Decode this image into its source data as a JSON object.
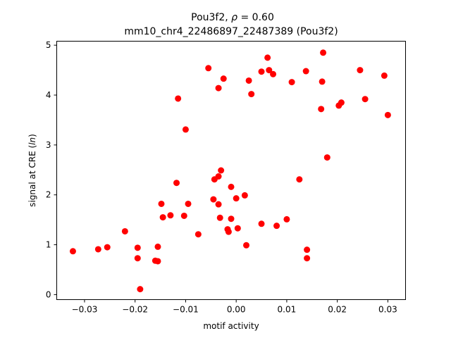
{
  "chart_data": {
    "type": "scatter",
    "title_line1_prefix": "Pou3f2, ",
    "title_line1_rho": "ρ",
    "title_line1_suffix": " = 0.60",
    "title_line2": "mm10_chr4_22486897_22487389 (Pou3f2)",
    "xlabel": "motif activity",
    "ylabel_prefix": "signal at CRE (",
    "ylabel_italic": "ln",
    "ylabel_suffix": ")",
    "xlim": [
      -0.0355,
      0.0335
    ],
    "ylim": [
      -0.1,
      5.08
    ],
    "xticks": [
      -0.03,
      -0.02,
      -0.01,
      0.0,
      0.01,
      0.02,
      0.03
    ],
    "xtick_labels": [
      "−0.03",
      "−0.02",
      "−0.01",
      "0.00",
      "0.01",
      "0.02",
      "0.03"
    ],
    "yticks": [
      0,
      1,
      2,
      3,
      4,
      5
    ],
    "ytick_labels": [
      "0",
      "1",
      "2",
      "3",
      "4",
      "5"
    ],
    "marker_color": "#ff0000",
    "grid": false,
    "points": [
      [
        -0.0323,
        0.87
      ],
      [
        -0.0273,
        0.91
      ],
      [
        -0.0255,
        0.95
      ],
      [
        -0.022,
        1.27
      ],
      [
        -0.0195,
        0.94
      ],
      [
        -0.0195,
        0.73
      ],
      [
        -0.019,
        0.11
      ],
      [
        -0.016,
        0.68
      ],
      [
        -0.0155,
        0.67
      ],
      [
        -0.0155,
        0.96
      ],
      [
        -0.0148,
        1.82
      ],
      [
        -0.0145,
        1.55
      ],
      [
        -0.013,
        1.59
      ],
      [
        -0.0118,
        2.24
      ],
      [
        -0.0115,
        3.93
      ],
      [
        -0.0103,
        1.58
      ],
      [
        -0.01,
        3.31
      ],
      [
        -0.0095,
        1.82
      ],
      [
        -0.0075,
        1.21
      ],
      [
        -0.0055,
        4.54
      ],
      [
        -0.0045,
        1.91
      ],
      [
        -0.0043,
        2.31
      ],
      [
        -0.0035,
        2.37
      ],
      [
        -0.0035,
        1.81
      ],
      [
        -0.0035,
        4.14
      ],
      [
        -0.0032,
        1.54
      ],
      [
        -0.003,
        2.49
      ],
      [
        -0.0025,
        4.33
      ],
      [
        -0.0017,
        1.31
      ],
      [
        -0.0015,
        1.26
      ],
      [
        -0.001,
        2.16
      ],
      [
        -0.001,
        1.52
      ],
      [
        0.0,
        1.93
      ],
      [
        0.0003,
        1.33
      ],
      [
        0.0017,
        1.99
      ],
      [
        0.002,
        0.99
      ],
      [
        0.0025,
        4.29
      ],
      [
        0.003,
        4.02
      ],
      [
        0.005,
        1.42
      ],
      [
        0.005,
        4.47
      ],
      [
        0.0062,
        4.75
      ],
      [
        0.0065,
        4.5
      ],
      [
        0.0073,
        4.42
      ],
      [
        0.008,
        1.38
      ],
      [
        0.01,
        1.51
      ],
      [
        0.011,
        4.26
      ],
      [
        0.0125,
        2.31
      ],
      [
        0.0138,
        4.48
      ],
      [
        0.014,
        0.9
      ],
      [
        0.014,
        0.73
      ],
      [
        0.0168,
        3.72
      ],
      [
        0.017,
        4.27
      ],
      [
        0.0172,
        4.85
      ],
      [
        0.018,
        2.75
      ],
      [
        0.0203,
        3.79
      ],
      [
        0.0208,
        3.85
      ],
      [
        0.0245,
        4.5
      ],
      [
        0.0255,
        3.92
      ],
      [
        0.0293,
        4.39
      ],
      [
        0.03,
        3.6
      ]
    ]
  }
}
